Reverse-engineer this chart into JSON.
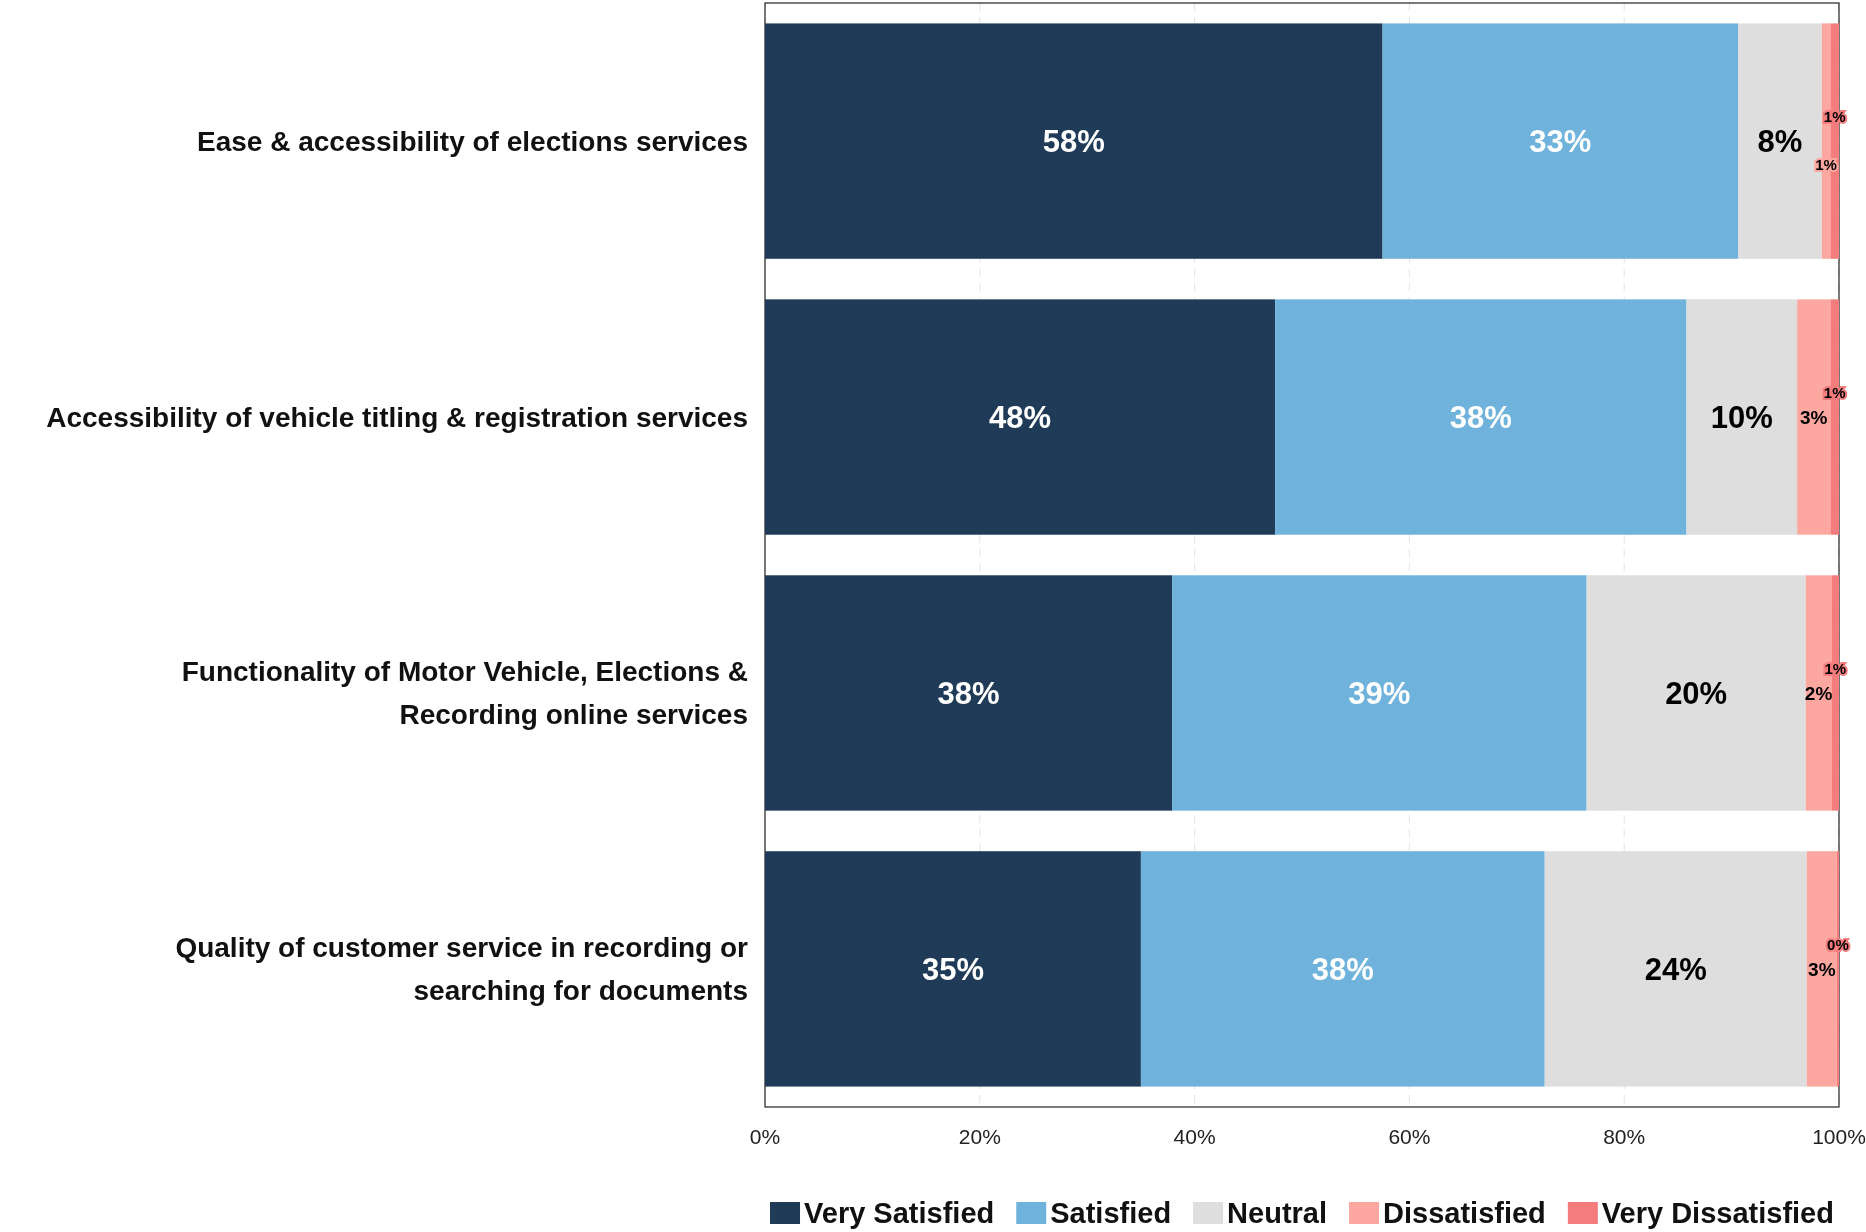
{
  "chart_data": {
    "type": "bar",
    "orientation": "horizontal",
    "stacked": true,
    "categories": [
      "Ease & accessibility of elections services",
      "Accessibility of vehicle titling & registration services",
      "Functionality of Motor Vehicle, Elections & Recording online services",
      "Quality of customer service in recording or searching for documents"
    ],
    "series": [
      {
        "name": "Very Satisfied",
        "color": "#1f3b57",
        "values": [
          57.5,
          47.5,
          37.9,
          35.0
        ],
        "value_labels": [
          "58%",
          "48%",
          "38%",
          "35%"
        ]
      },
      {
        "name": "Satisfied",
        "color": "#6fb3dc",
        "values": [
          33.1,
          38.3,
          38.6,
          37.6
        ],
        "value_labels": [
          "33%",
          "38%",
          "39%",
          "38%"
        ]
      },
      {
        "name": "Neutral",
        "color": "#dedede",
        "values": [
          7.8,
          10.3,
          20.4,
          24.4
        ],
        "value_labels": [
          "8%",
          "10%",
          "20%",
          "24%"
        ]
      },
      {
        "name": "Dissatisfied",
        "color": "#fca8a0",
        "values": [
          0.8,
          3.1,
          2.4,
          2.8
        ],
        "value_labels": [
          "1%",
          "3%",
          "2%",
          "3%"
        ]
      },
      {
        "name": "Very Dissatisfied",
        "color": "#f47c7c",
        "values": [
          0.8,
          0.8,
          0.7,
          0.2
        ],
        "value_labels": [
          "1%",
          "1%",
          "1%",
          "0%"
        ]
      }
    ],
    "xlim": [
      0,
      100
    ],
    "xticks": [
      {
        "value": 0,
        "label": "0%"
      },
      {
        "value": 20,
        "label": "20%"
      },
      {
        "value": 40,
        "label": "40%"
      },
      {
        "value": 60,
        "label": "60%"
      },
      {
        "value": 80,
        "label": "80%"
      },
      {
        "value": 100,
        "label": "100%"
      }
    ],
    "grid": "x",
    "legend": "bottom"
  }
}
